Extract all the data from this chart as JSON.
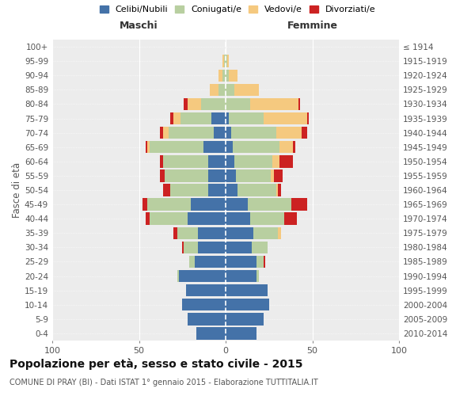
{
  "age_groups": [
    "0-4",
    "5-9",
    "10-14",
    "15-19",
    "20-24",
    "25-29",
    "30-34",
    "35-39",
    "40-44",
    "45-49",
    "50-54",
    "55-59",
    "60-64",
    "65-69",
    "70-74",
    "75-79",
    "80-84",
    "85-89",
    "90-94",
    "95-99",
    "100+"
  ],
  "birth_years": [
    "2010-2014",
    "2005-2009",
    "2000-2004",
    "1995-1999",
    "1990-1994",
    "1985-1989",
    "1980-1984",
    "1975-1979",
    "1970-1974",
    "1965-1969",
    "1960-1964",
    "1955-1959",
    "1950-1954",
    "1945-1949",
    "1940-1944",
    "1935-1939",
    "1930-1934",
    "1925-1929",
    "1920-1924",
    "1915-1919",
    "≤ 1914"
  ],
  "maschi": {
    "celibi": [
      17,
      22,
      25,
      23,
      27,
      18,
      16,
      16,
      22,
      20,
      10,
      10,
      10,
      13,
      7,
      8,
      0,
      0,
      0,
      0,
      0
    ],
    "coniugati": [
      0,
      0,
      0,
      0,
      1,
      3,
      8,
      12,
      22,
      25,
      22,
      25,
      26,
      31,
      26,
      18,
      14,
      4,
      2,
      1,
      0
    ],
    "vedovi": [
      0,
      0,
      0,
      0,
      0,
      0,
      0,
      0,
      0,
      0,
      0,
      0,
      0,
      1,
      3,
      4,
      8,
      5,
      2,
      1,
      0
    ],
    "divorziati": [
      0,
      0,
      0,
      0,
      0,
      0,
      1,
      2,
      2,
      3,
      4,
      3,
      2,
      1,
      2,
      2,
      2,
      0,
      0,
      0,
      0
    ]
  },
  "femmine": {
    "nubili": [
      18,
      22,
      25,
      24,
      18,
      18,
      15,
      16,
      14,
      13,
      7,
      6,
      5,
      4,
      3,
      2,
      0,
      0,
      0,
      0,
      0
    ],
    "coniugate": [
      0,
      0,
      0,
      0,
      1,
      4,
      9,
      14,
      20,
      25,
      22,
      20,
      22,
      27,
      26,
      20,
      14,
      5,
      2,
      1,
      0
    ],
    "vedove": [
      0,
      0,
      0,
      0,
      0,
      0,
      0,
      2,
      0,
      0,
      1,
      2,
      4,
      8,
      15,
      25,
      28,
      14,
      5,
      1,
      0
    ],
    "divorziate": [
      0,
      0,
      0,
      0,
      0,
      1,
      0,
      0,
      7,
      9,
      2,
      5,
      8,
      1,
      3,
      1,
      1,
      0,
      0,
      0,
      0
    ]
  },
  "colors": {
    "celibi": "#4472a8",
    "coniugati": "#b8cfa0",
    "vedovi": "#f5c97f",
    "divorziati": "#cc2222"
  },
  "legend_labels": [
    "Celibi/Nubili",
    "Coniugati/e",
    "Vedovi/e",
    "Divorziati/e"
  ],
  "title": "Popolazione per età, sesso e stato civile - 2015",
  "subtitle": "COMUNE DI PRAY (BI) - Dati ISTAT 1° gennaio 2015 - Elaborazione TUTTITALIA.IT",
  "xlabel_left": "Maschi",
  "xlabel_right": "Femmine",
  "ylabel_left": "Fasce di età",
  "xlim": 100,
  "bg_color": "#ececec"
}
